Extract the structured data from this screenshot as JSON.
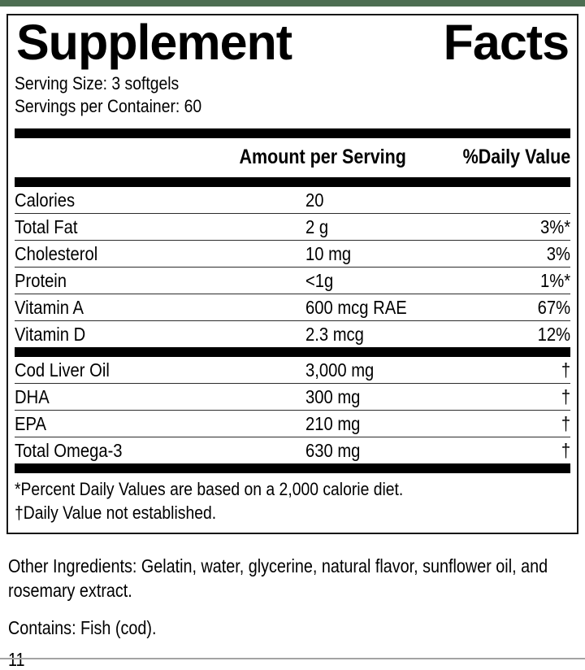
{
  "colors": {
    "top_strip": "#4d6e52",
    "bottom_rule": "#a3a3a3",
    "text": "#000000",
    "bars": "#000000"
  },
  "label": {
    "title": {
      "word1": "Supplement",
      "word2": "Facts"
    },
    "serving_size": "Serving Size: 3 softgels",
    "servings_per_container": "Servings per Container: 60",
    "columns": {
      "amount": "Amount per Serving",
      "daily_value": "%Daily Value"
    },
    "nutrients": [
      {
        "name": "Calories",
        "amount": "20",
        "dv": ""
      },
      {
        "name": "Total Fat",
        "amount": "2 g",
        "dv": "3%*"
      },
      {
        "name": "Cholesterol",
        "amount": "10 mg",
        "dv": "3%"
      },
      {
        "name": "Protein",
        "amount": "<1g",
        "dv": "1%*"
      },
      {
        "name": "Vitamin A",
        "amount": "600 mcg RAE",
        "dv": "67%"
      },
      {
        "name": "Vitamin D",
        "amount": "2.3 mcg",
        "dv": "12%"
      }
    ],
    "ingredients": [
      {
        "name": "Cod Liver Oil",
        "amount": "3,000 mg",
        "dv": "†"
      },
      {
        "name": "DHA",
        "amount": "300 mg",
        "dv": "†"
      },
      {
        "name": "EPA",
        "amount": "210 mg",
        "dv": "†"
      },
      {
        "name": "Total Omega-3",
        "amount": "630 mg",
        "dv": "†"
      }
    ],
    "footnotes": [
      "*Percent Daily Values are based on a 2,000 calorie diet.",
      "†Daily Value not established."
    ]
  },
  "other_ingredients": "Other Ingredients: Gelatin, water, glycerine, natural flavor, sunflower oil, and rosemary extract.",
  "contains": "Contains: Fish (cod).",
  "page_number": "11"
}
